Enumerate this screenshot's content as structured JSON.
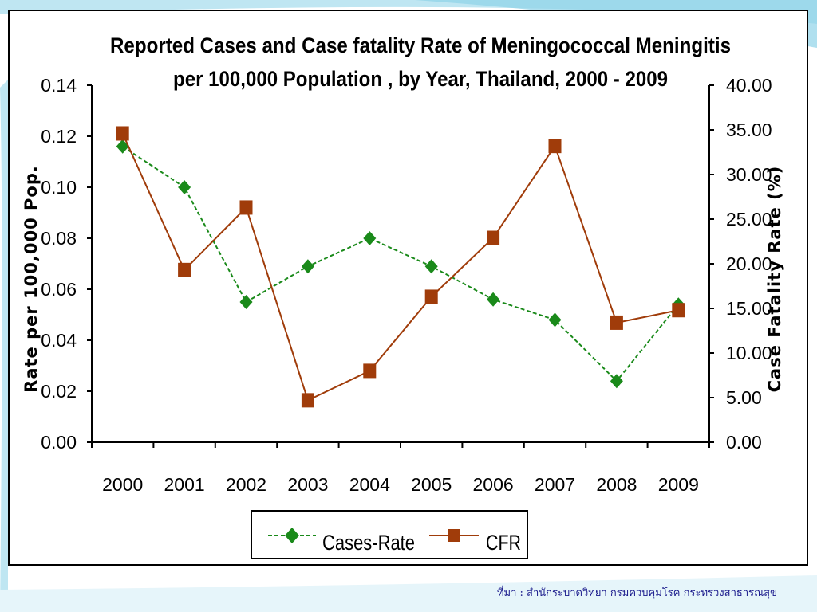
{
  "source_note": "ที่มา : สำนักระบาดวิทยา กรมควบคุมโรค กระทรวงสาธารณสุข",
  "colors": {
    "cases": "#1a8a1a",
    "cfr": "#a03c0a",
    "background_accent": "#8fd3e8"
  },
  "chart_data": {
    "type": "line",
    "title": [
      "Reported Cases and Case fatality Rate of  Meningococcal  Meningitis",
      "per 100,000  Population , by Year, Thailand, 2000  - 2009"
    ],
    "categories": [
      "2000",
      "2001",
      "2002",
      "2003",
      "2004",
      "2005",
      "2006",
      "2007",
      "2008",
      "2009"
    ],
    "y_left": {
      "label": "Rate per 100,000 Pop.",
      "range": [
        0,
        0.14
      ],
      "ticks": [
        "0.00",
        "0.02",
        "0.04",
        "0.06",
        "0.08",
        "0.10",
        "0.12",
        "0.14"
      ]
    },
    "y_right": {
      "label": "Case Fatality Rate (%)",
      "range": [
        0,
        40
      ],
      "ticks": [
        "0.00",
        "5.00",
        "10.00",
        "15.00",
        "20.00",
        "25.00",
        "30.00",
        "35.00",
        "40.00"
      ]
    },
    "series": [
      {
        "name": "Cases-Rate",
        "axis": "left",
        "style": "dashed",
        "marker": "diamond",
        "values": [
          0.116,
          0.1,
          0.055,
          0.069,
          0.08,
          0.069,
          0.056,
          0.048,
          0.024,
          0.054
        ]
      },
      {
        "name": "CFR",
        "axis": "right",
        "style": "solid",
        "marker": "square",
        "values": [
          34.6,
          19.3,
          26.3,
          4.7,
          8.0,
          16.3,
          22.9,
          33.2,
          13.4,
          14.8
        ]
      }
    ],
    "legend": {
      "position": "bottom"
    },
    "grid": false
  }
}
